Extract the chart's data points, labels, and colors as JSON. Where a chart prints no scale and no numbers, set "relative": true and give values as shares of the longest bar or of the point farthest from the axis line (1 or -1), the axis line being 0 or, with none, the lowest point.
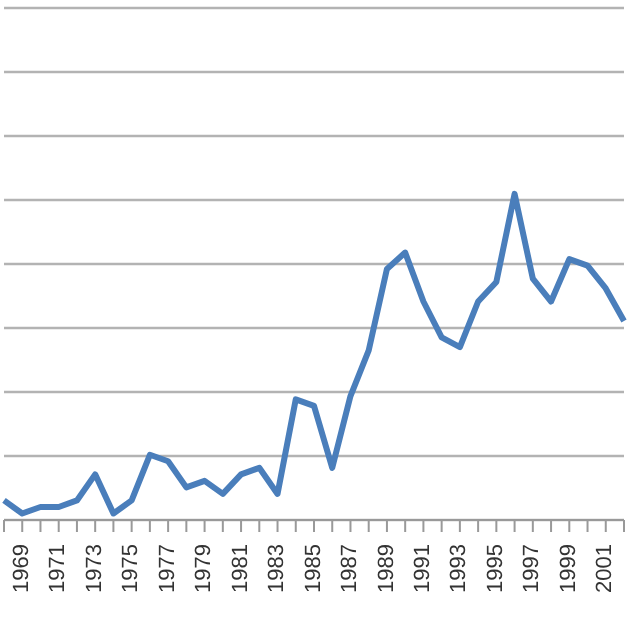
{
  "chart_data": {
    "type": "line",
    "relative": true,
    "grid": "y",
    "legend": false,
    "marker": "none",
    "line_style": "solid",
    "categories": [
      null,
      "1969",
      null,
      "1971",
      null,
      "1973",
      null,
      "1975",
      null,
      "1977",
      null,
      "1979",
      null,
      "1981",
      null,
      "1983",
      null,
      "1985",
      null,
      "1987",
      null,
      "1989",
      null,
      "1991",
      null,
      "1993",
      null,
      "1995",
      null,
      "1997",
      null,
      "1999",
      null,
      "2001",
      null
    ],
    "series": [
      {
        "color": "#4a7ebb",
        "values": [
          0.06,
          0.02,
          0.04,
          0.04,
          0.06,
          0.14,
          0.02,
          0.06,
          0.2,
          0.18,
          0.1,
          0.12,
          0.08,
          0.14,
          0.16,
          0.08,
          0.37,
          0.35,
          0.16,
          0.38,
          0.52,
          0.77,
          0.82,
          0.67,
          0.56,
          0.53,
          0.67,
          0.73,
          1,
          0.74,
          0.67,
          0.8,
          0.78,
          0.71,
          0.61
        ]
      }
    ]
  }
}
